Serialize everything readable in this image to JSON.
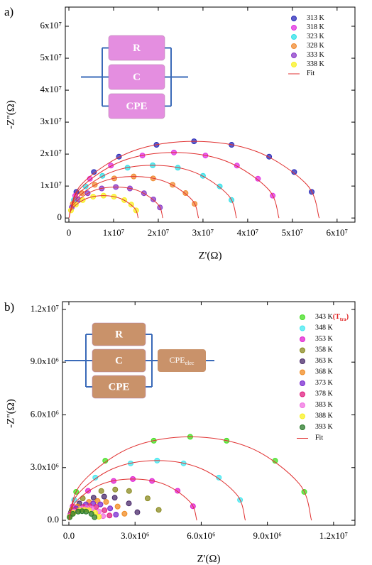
{
  "chart_data": [
    {
      "type": "scatter",
      "panel_label": "a)",
      "xlabel": "Z'(Ω)",
      "ylabel": "-Z''(Ω)",
      "xlim": [
        -800000,
        64000000
      ],
      "ylim": [
        -1300000,
        66000000
      ],
      "xticks": [
        0,
        {
          "value": 10000000.0,
          "label": "1x10⁷"
        },
        {
          "value": 20000000.0,
          "label": "2x10⁷"
        },
        {
          "value": 30000000.0,
          "label": "3x10⁷"
        },
        {
          "value": 40000000.0,
          "label": "4x10⁷"
        },
        {
          "value": 50000000.0,
          "label": "5x10⁷"
        },
        {
          "value": 60000000.0,
          "label": "6x10⁷"
        }
      ],
      "yticks": [
        0,
        {
          "value": 10000000.0,
          "label": "1x10⁷"
        },
        {
          "value": 20000000.0,
          "label": "2x10⁷"
        },
        {
          "value": 30000000.0,
          "label": "3x10⁷"
        },
        {
          "value": 40000000.0,
          "label": "4x10⁷"
        },
        {
          "value": 50000000.0,
          "label": "5x10⁷"
        },
        {
          "value": 60000000.0,
          "label": "6x10⁷"
        }
      ],
      "legend": "upper right",
      "circuit": {
        "elements": [
          "R",
          "C",
          "CPE"
        ],
        "color": "#e48ee0"
      },
      "series": [
        {
          "name": "313 K",
          "color": "#2a2ab8",
          "x": [
            1680000.0,
            5600000.0,
            11200000.0,
            19600000.0,
            28000000.0,
            36400000.0,
            44800000.0,
            50400000.0,
            54320000.0
          ],
          "values": [
            8180000.0,
            14400000.0,
            19200000.0,
            22900000.0,
            24000000.0,
            22900000.0,
            19200000.0,
            14400000.0,
            8180000.0
          ]
        },
        {
          "name": "318 K",
          "color": "#e030e0",
          "x": [
            1410000.0,
            4700000.0,
            9400000.0,
            16450000.0,
            23500000.0,
            30550000.0,
            37600000.0,
            42300000.0,
            45590000.0
          ],
          "values": [
            6990000.0,
            12300000.0,
            16400000.0,
            19560000.0,
            20500000.0,
            19560000.0,
            16400000.0,
            12300000.0,
            6990000.0
          ]
        },
        {
          "name": "323 K",
          "color": "#30e0e8",
          "x": [
            1125000.0,
            3750000.0,
            7500000.0,
            13125000.0,
            18750000.0,
            24375000.0,
            30000000.0,
            33750000.0,
            36375000.0
          ],
          "values": [
            5630000.0,
            9900000.0,
            13200000.0,
            15740000.0,
            16500000.0,
            15740000.0,
            13200000.0,
            9900000.0,
            5630000.0
          ]
        },
        {
          "name": "328 K",
          "color": "#f08a30",
          "x": [
            870000.0,
            2900000.0,
            5800000.0,
            10150000.0,
            14500000.0,
            18850000.0,
            23200000.0,
            26100000.0,
            28130000.0
          ],
          "values": [
            4430000.0,
            7800000.0,
            10400000.0,
            12400000.0,
            13000000.0,
            12400000.0,
            10400000.0,
            7800000.0,
            4430000.0
          ]
        },
        {
          "name": "333 K",
          "color": "#8a3ac8",
          "x": [
            630000.0,
            2100000.0,
            4200000.0,
            7350000.0,
            10500000.0,
            13650000.0,
            16800000.0,
            18900000.0,
            20370000.0
          ],
          "values": [
            3310000.0,
            5820000.0,
            7760000.0,
            9250000.0,
            9700000.0,
            9250000.0,
            7760000.0,
            5820000.0,
            3310000.0
          ]
        },
        {
          "name": "338 K",
          "color": "#f8f020",
          "x": [
            465000.0,
            1550000.0,
            3100000.0,
            5425000.0,
            7750000.0,
            10075000.0,
            12400000.0,
            13950000.0,
            15035000.0
          ],
          "values": [
            2390000.0,
            4200000.0,
            5600000.0,
            6680000.0,
            7000000.0,
            6680000.0,
            5600000.0,
            4200000.0,
            2390000.0
          ]
        },
        {
          "name": "Fit",
          "color": "#e03030",
          "style": "line",
          "x": [
            0,
            2800000.0,
            14000000.0,
            28000000.0,
            42000000.0,
            53200000.0,
            56000000.0,
            null,
            0,
            2350000.0,
            11750000.0,
            23500000.0,
            35250000.0,
            44650000.0,
            47000000.0,
            null,
            0,
            1875000.0,
            9375000.0,
            18750000.0,
            28125000.0,
            35625000.0,
            37500000.0,
            null,
            0,
            1450000.0,
            7250000.0,
            14500000.0,
            21750000.0,
            27550000.0,
            29000000.0,
            null,
            0,
            1050000.0,
            5250000.0,
            10500000.0,
            15750000.0,
            19950000.0,
            21000000.0,
            null,
            0,
            775000.0,
            3875000.0,
            7750000.0,
            11625000.0,
            14725000.0,
            15500000.0
          ],
          "values": [
            0,
            10500000.0,
            20800000.0,
            24000000.0,
            20800000.0,
            10500000.0,
            0,
            null,
            0,
            8940000.0,
            17750000.0,
            20500000.0,
            17750000.0,
            8940000.0,
            0,
            null,
            0,
            7190000.0,
            14290000.0,
            16500000.0,
            14290000.0,
            7190000.0,
            0,
            null,
            0,
            5670000.0,
            11260000.0,
            13000000.0,
            11260000.0,
            5670000.0,
            0,
            null,
            0,
            4230000.0,
            8400000.0,
            9700000.0,
            8400000.0,
            4230000.0,
            0,
            null,
            0,
            3050000.0,
            6060000.0,
            7000000.0,
            6060000.0,
            3050000.0,
            0
          ]
        }
      ]
    },
    {
      "type": "scatter",
      "panel_label": "b)",
      "xlabel": "Z'(Ω)",
      "ylabel": "-Z''(Ω)",
      "xlim": [
        -290000,
        12970000
      ],
      "ylim": [
        -280000,
        12440000
      ],
      "xticks": [
        {
          "value": 0,
          "label": "0.0"
        },
        {
          "value": 3000000.0,
          "label": "3.0x10⁶"
        },
        {
          "value": 6000000.0,
          "label": "6.0x10⁶"
        },
        {
          "value": 9000000.0,
          "label": "9.0x10⁶"
        },
        {
          "value": 12000000.0,
          "label": "1.2x10⁷"
        }
      ],
      "yticks": [
        {
          "value": 0,
          "label": "0.0"
        },
        {
          "value": 3000000.0,
          "label": "3.0x10⁶"
        },
        {
          "value": 6000000.0,
          "label": "6.0x10⁶"
        },
        {
          "value": 9000000.0,
          "label": "9.0x10⁶"
        },
        {
          "value": 12000000.0,
          "label": "1.2x10⁷"
        }
      ],
      "legend": "upper right",
      "circuit": {
        "elements": [
          "R",
          "C",
          "CPE"
        ],
        "extra": "CPE",
        "extra_sub": "elec",
        "color": "#c9926a"
      },
      "series": [
        {
          "name": "343 K",
          "name_suffix": [
            "(T",
            "tra",
            ")"
          ],
          "color": "#44dd22",
          "x": [
            330000.0,
            1650000.0,
            3850000.0,
            5500000.0,
            7150000.0,
            9350000.0,
            10670000.0
          ],
          "values": [
            1620000.0,
            3390000.0,
            4530000.0,
            4750000.0,
            4530000.0,
            3390000.0,
            1620000.0
          ]
        },
        {
          "name": "348 K",
          "color": "#44e8f0",
          "x": [
            240000.0,
            1200000.0,
            2800000.0,
            4000000.0,
            5200000.0,
            6800000.0,
            7760000.0
          ],
          "values": [
            1160000.0,
            2430000.0,
            3240000.0,
            3400000.0,
            3240000.0,
            2430000.0,
            1160000.0
          ]
        },
        {
          "name": "353 K",
          "color": "#e020d0",
          "x": [
            174000.0,
            870000.0,
            2030000.0,
            2900000.0,
            3770000.0,
            4930000.0,
            5626000.0
          ],
          "values": [
            800000.0,
            1680000.0,
            2240000.0,
            2350000.0,
            2240000.0,
            1680000.0,
            800000.0
          ]
        },
        {
          "name": "358 K",
          "color": "#8a8a20",
          "x": [
            126000.0,
            630000.0,
            1470000.0,
            2100000.0,
            2730000.0,
            3570000.0,
            4074000.0
          ],
          "values": [
            597000.0,
            1250000.0,
            1670000.0,
            1750000.0,
            1670000.0,
            1250000.0,
            597000.0
          ]
        },
        {
          "name": "363 K",
          "color": "#4a2a6a",
          "x": [
            96000.0,
            480000.0,
            1120000.0,
            1600000.0,
            2080000.0,
            2720000.0,
            3104000.0
          ],
          "values": [
            460000.0,
            964000.0,
            1288000.0,
            1350000.0,
            1288000.0,
            964000.0,
            460000.0
          ]
        },
        {
          "name": "368 K",
          "color": "#f08a20",
          "x": [
            78000.0,
            390000.0,
            910000.0,
            1300000.0,
            1690000.0,
            2210000.0,
            2522000.0
          ],
          "values": [
            375000.0,
            785000.0,
            1049000.0,
            1100000.0,
            1049000.0,
            785000.0,
            375000.0
          ]
        },
        {
          "name": "373 K",
          "color": "#7a2ad0",
          "x": [
            66000.0,
            330000.0,
            770000.0,
            1100000.0,
            1430000.0,
            1870000.0,
            2134000.0
          ],
          "values": [
            324000.0,
            678000.0,
            906000.0,
            950000.0,
            906000.0,
            678000.0,
            324000.0
          ]
        },
        {
          "name": "378 K",
          "color": "#e02080",
          "x": [
            57000.0,
            285000.0,
            665000.0,
            950000.0,
            1235000.0,
            1615000.0,
            1843000.0
          ],
          "values": [
            273000.0,
            571000.0,
            763000.0,
            800000.0,
            763000.0,
            571000.0,
            273000.0
          ]
        },
        {
          "name": "383 K",
          "color": "#f070e0",
          "x": [
            48000.0,
            240000.0,
            560000.0,
            800000.0,
            1040000.0,
            1360000.0,
            1552000.0
          ],
          "values": [
            239000.0,
            500000.0,
            668000.0,
            700000.0,
            668000.0,
            500000.0,
            239000.0
          ]
        },
        {
          "name": "388 K",
          "color": "#f8f020",
          "x": [
            42000.0,
            210000.0,
            490000.0,
            700000.0,
            910000.0,
            1190000.0,
            1358000.0
          ],
          "values": [
            205000.0,
            428000.0,
            572000.0,
            600000.0,
            572000.0,
            428000.0,
            205000.0
          ]
        },
        {
          "name": "393 K",
          "color": "#2a7a2a",
          "x": [
            36000.0,
            180000.0,
            420000.0,
            600000.0,
            780000.0,
            1020000.0,
            1164000.0
          ],
          "values": [
            177000.0,
            371000.0,
            496000.0,
            520000.0,
            496000.0,
            371000.0,
            177000.0
          ]
        },
        {
          "name": "Fit",
          "color": "#e03030",
          "style": "line",
          "x": [
            0,
            550000.0,
            2750000.0,
            5500000.0,
            8250000.0,
            10450000.0,
            11000000.0,
            null,
            0,
            400000.0,
            2000000.0,
            4000000.0,
            6000000.0,
            7600000.0,
            8000000.0,
            null,
            0,
            290000.0,
            1450000.0,
            2900000.0,
            4350000.0,
            5510000.0,
            5800000.0
          ],
          "values": [
            0,
            2070000.0,
            4110000.0,
            4750000.0,
            4110000.0,
            2070000.0,
            0,
            null,
            0,
            1480000.0,
            2940000.0,
            3400000.0,
            2940000.0,
            1480000.0,
            0,
            null,
            0,
            1020000.0,
            2040000.0,
            2350000.0,
            2040000.0,
            1020000.0,
            0
          ]
        }
      ]
    }
  ]
}
